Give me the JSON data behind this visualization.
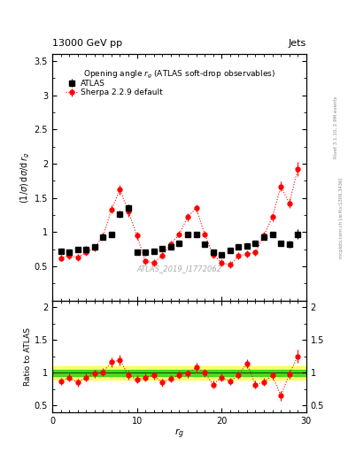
{
  "header_left": "13000 GeV pp",
  "header_right": "Jets",
  "plot_title": "Opening angle r_g (ATLAS soft-drop observables)",
  "ylabel_main": "(1/σ) dσ/d r_g",
  "ylabel_ratio": "Ratio to ATLAS",
  "xlabel": "r_g",
  "watermark": "ATLAS_2019_I1772062",
  "rivet_label": "Rivet 3.1.10, 2.9M events",
  "arxiv_label": "mcplots.cern.ch [arXiv:1306.3436]",
  "atlas_x": [
    1,
    2,
    3,
    4,
    5,
    6,
    7,
    8,
    9,
    10,
    11,
    12,
    13,
    14,
    15,
    16,
    17,
    18,
    19,
    20,
    21,
    22,
    23,
    24,
    25,
    26,
    27,
    28,
    29
  ],
  "atlas_y": [
    0.72,
    0.7,
    0.74,
    0.75,
    0.78,
    0.93,
    0.97,
    1.26,
    1.35,
    0.71,
    0.7,
    0.72,
    0.76,
    0.78,
    0.83,
    0.97,
    0.97,
    0.82,
    0.7,
    0.67,
    0.73,
    0.78,
    0.8,
    0.83,
    0.93,
    0.97,
    0.83,
    0.82,
    0.97
  ],
  "atlas_yerr": [
    0.04,
    0.04,
    0.04,
    0.04,
    0.04,
    0.04,
    0.04,
    0.05,
    0.06,
    0.04,
    0.04,
    0.04,
    0.04,
    0.04,
    0.04,
    0.04,
    0.04,
    0.04,
    0.04,
    0.04,
    0.04,
    0.04,
    0.04,
    0.04,
    0.04,
    0.04,
    0.04,
    0.05,
    0.07
  ],
  "sherpa_x": [
    1,
    2,
    3,
    4,
    5,
    6,
    7,
    8,
    9,
    10,
    11,
    12,
    13,
    14,
    15,
    16,
    17,
    18,
    19,
    20,
    21,
    22,
    23,
    24,
    25,
    26,
    27,
    28,
    29
  ],
  "sherpa_y": [
    0.62,
    0.65,
    0.63,
    0.7,
    0.77,
    0.94,
    1.33,
    1.62,
    1.3,
    0.95,
    0.57,
    0.55,
    0.66,
    0.82,
    0.97,
    1.22,
    1.35,
    0.97,
    0.67,
    0.55,
    0.52,
    0.65,
    0.68,
    0.7,
    0.95,
    1.22,
    1.67,
    1.42,
    1.92
  ],
  "sherpa_yerr": [
    0.05,
    0.05,
    0.05,
    0.05,
    0.05,
    0.05,
    0.06,
    0.07,
    0.07,
    0.06,
    0.05,
    0.05,
    0.05,
    0.05,
    0.05,
    0.06,
    0.06,
    0.05,
    0.05,
    0.05,
    0.05,
    0.05,
    0.05,
    0.05,
    0.05,
    0.06,
    0.07,
    0.07,
    0.1
  ],
  "ratio_y": [
    0.87,
    0.93,
    0.85,
    0.93,
    0.99,
    1.01,
    1.16,
    1.19,
    0.96,
    0.9,
    0.93,
    0.96,
    0.85,
    0.91,
    0.97,
    0.99,
    1.08,
    1.0,
    0.82,
    0.93,
    0.87,
    0.97,
    1.14,
    0.82,
    0.86,
    0.96,
    0.65,
    0.98,
    1.25
  ],
  "ratio_yerr": [
    0.06,
    0.06,
    0.06,
    0.06,
    0.06,
    0.06,
    0.07,
    0.08,
    0.07,
    0.06,
    0.06,
    0.06,
    0.06,
    0.06,
    0.06,
    0.06,
    0.07,
    0.06,
    0.06,
    0.06,
    0.06,
    0.06,
    0.07,
    0.06,
    0.06,
    0.06,
    0.07,
    0.07,
    0.1
  ],
  "ylim_main": [
    0,
    3.6
  ],
  "ylim_ratio": [
    0.4,
    2.1
  ],
  "yticks_main": [
    0.5,
    1.0,
    1.5,
    2.0,
    2.5,
    3.0,
    3.5
  ],
  "ytick_labels_main": [
    "0.5",
    "1",
    "1.5",
    "2",
    "2.5",
    "3",
    "3.5"
  ],
  "yticks_ratio": [
    0.5,
    1.0,
    1.5,
    2.0
  ],
  "ytick_labels_ratio": [
    "0.5",
    "1",
    "1.5",
    "2"
  ],
  "xticks": [
    0,
    10,
    20,
    30
  ],
  "xlim": [
    0,
    30
  ],
  "green_band": [
    0.95,
    1.05
  ],
  "yellow_band": [
    0.9,
    1.1
  ],
  "bg_color": "#ffffff"
}
